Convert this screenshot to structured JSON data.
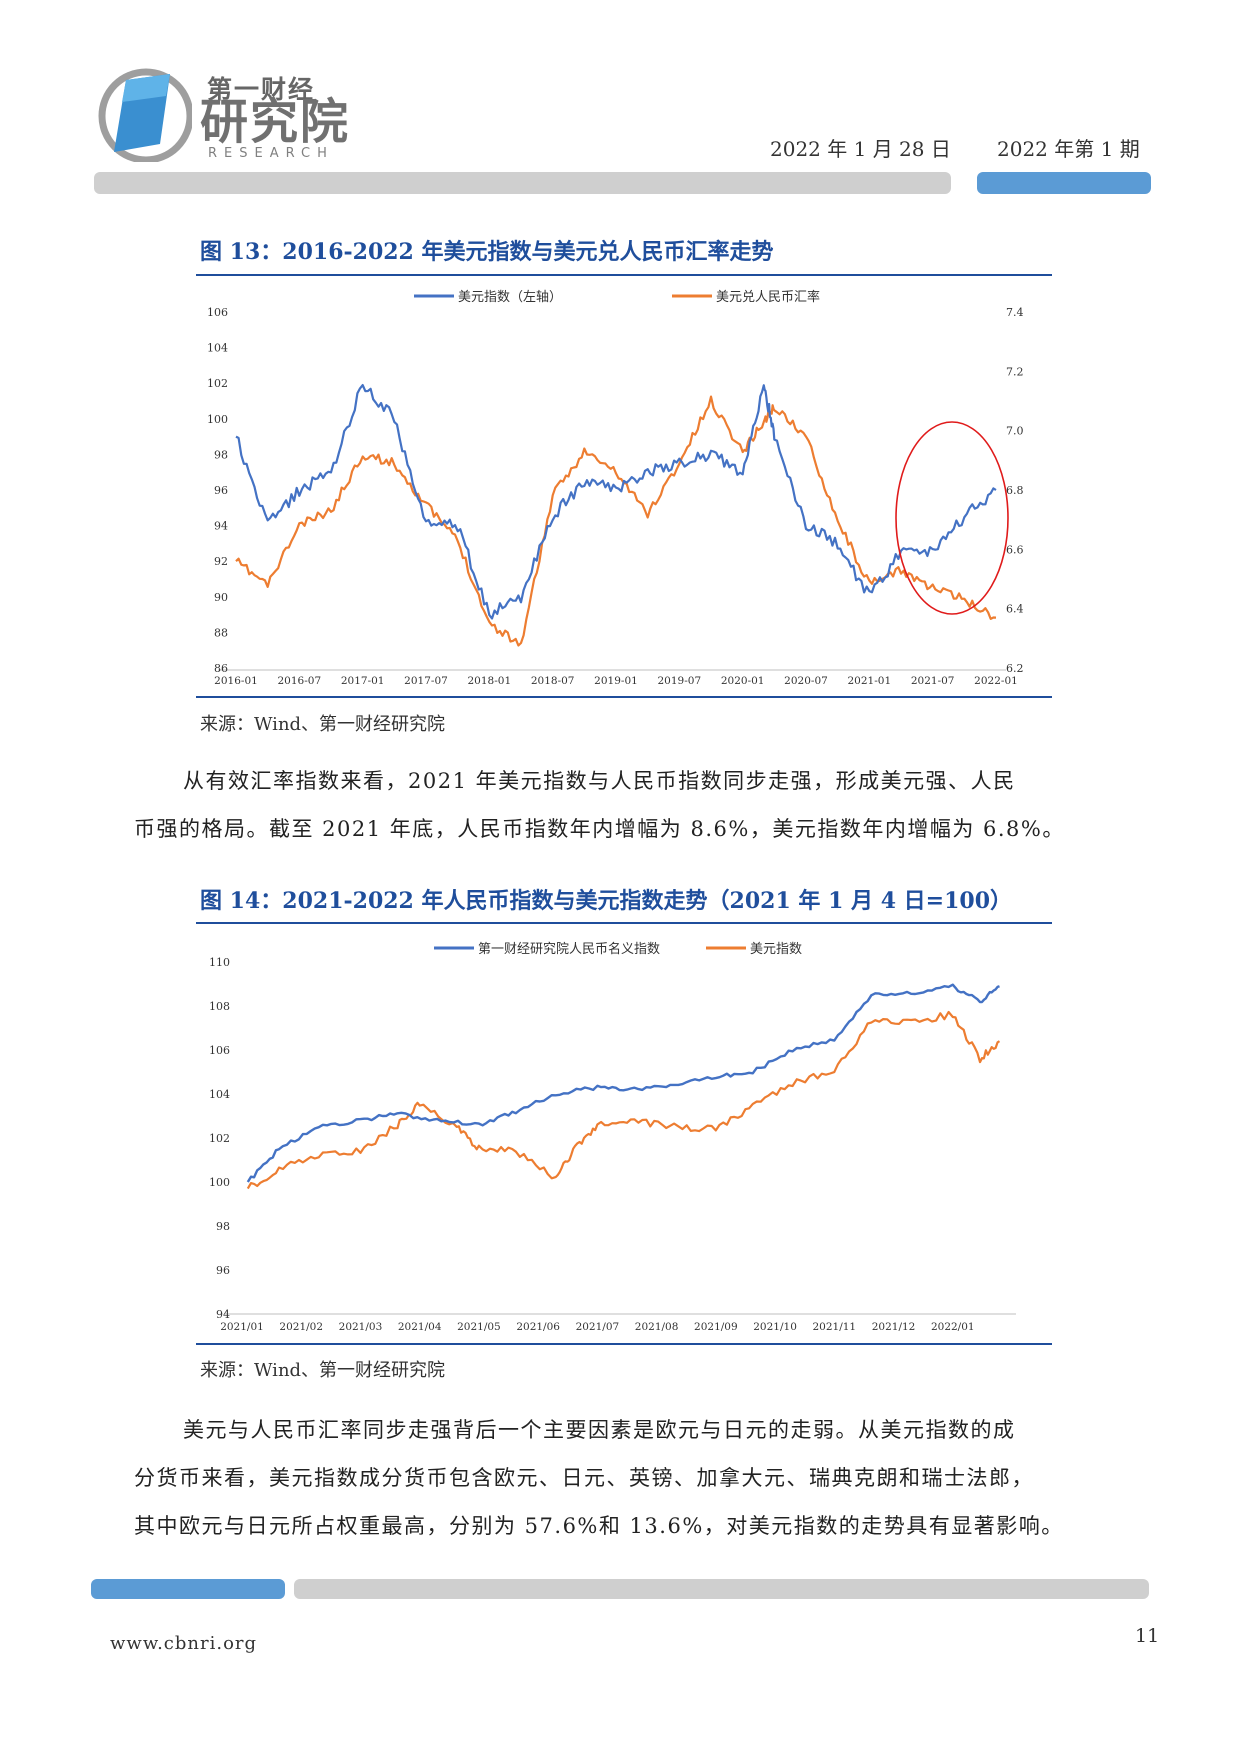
{
  "header": {
    "logo_small": "第一财经",
    "logo_big": "研究院",
    "logo_en": "RESEARCH",
    "date": "2022 年 1 月 28 日",
    "issue": "2022 年第 1 期",
    "colors": {
      "accent_blue": "#5b9bd5",
      "title_blue": "#1f4e9c",
      "bar_gray": "#cfcfcf"
    }
  },
  "figure13": {
    "title": "图 13：2016-2022 年美元指数与美元兑人民币汇率走势",
    "source": "来源：Wind、第一财经研究院"
  },
  "figure14": {
    "title": "图 14：2021-2022 年人民币指数与美元指数走势（2021 年 1 月 4 日=100）",
    "source": "来源：Wind、第一财经研究院"
  },
  "body": {
    "para1_line1": "从有效汇率指数来看，2021 年美元指数与人民币指数同步走强，形成美元强、人民",
    "para1_line2": "币强的格局。截至 2021 年底，人民币指数年内增幅为 8.6%，美元指数年内增幅为 6.8%。",
    "para2_line1": "美元与人民币汇率同步走强背后一个主要因素是欧元与日元的走弱。从美元指数的成",
    "para2_line2": "分货币来看，美元指数成分货币包含欧元、日元、英镑、加拿大元、瑞典克朗和瑞士法郎，",
    "para2_line3": "其中欧元与日元所占权重最高，分别为 57.6%和 13.6%，对美元指数的走势具有显著影响。"
  },
  "footer": {
    "url": "www.cbnri.org",
    "page": "11"
  },
  "chart_data": [
    {
      "type": "line",
      "title": "",
      "series": [
        {
          "name": "美元指数（左轴）",
          "axis": "left",
          "color": "#4472c4",
          "x": [
            "2016-01",
            "2016-04",
            "2016-07",
            "2016-10",
            "2017-01",
            "2017-04",
            "2017-07",
            "2017-10",
            "2018-01",
            "2018-04",
            "2018-07",
            "2018-10",
            "2019-01",
            "2019-04",
            "2019-07",
            "2019-10",
            "2020-01",
            "2020-03",
            "2020-04",
            "2020-07",
            "2020-10",
            "2021-01",
            "2021-04",
            "2021-07",
            "2021-10",
            "2022-01"
          ],
          "values": [
            99,
            94,
            96,
            97,
            102,
            100,
            94,
            94,
            89,
            90,
            94.5,
            96.5,
            96,
            97,
            97.5,
            98,
            97,
            102,
            99,
            94,
            93,
            90,
            92.5,
            92.5,
            94.5,
            96
          ]
        },
        {
          "name": "美元兑人民币汇率",
          "axis": "right",
          "color": "#ed7d31",
          "x": [
            "2016-01",
            "2016-04",
            "2016-07",
            "2016-10",
            "2017-01",
            "2017-04",
            "2017-07",
            "2017-10",
            "2018-01",
            "2018-04",
            "2018-07",
            "2018-10",
            "2019-01",
            "2019-04",
            "2019-07",
            "2019-10",
            "2020-01",
            "2020-03",
            "2020-04",
            "2020-07",
            "2020-10",
            "2021-01",
            "2021-04",
            "2021-07",
            "2021-10",
            "2022-01"
          ],
          "values": [
            6.56,
            6.48,
            6.68,
            6.73,
            6.92,
            6.89,
            6.75,
            6.63,
            6.35,
            6.28,
            6.78,
            6.93,
            6.86,
            6.72,
            6.89,
            7.1,
            6.93,
            7.03,
            7.08,
            6.98,
            6.7,
            6.48,
            6.53,
            6.47,
            6.43,
            6.37
          ]
        }
      ],
      "x_tick_labels": [
        "2016-01",
        "2016-07",
        "2017-01",
        "2017-07",
        "2018-01",
        "2018-07",
        "2019-01",
        "2019-07",
        "2020-01",
        "2020-07",
        "2021-01",
        "2021-07",
        "2022-01"
      ],
      "ylim_left": [
        86,
        106
      ],
      "yticks_left": [
        "106",
        "104",
        "102",
        "100",
        "98",
        "96",
        "94",
        "92",
        "90",
        "88",
        "86"
      ],
      "ylim_right": [
        6.2,
        7.4
      ],
      "yticks_right": [
        "7.4",
        "7.2",
        "7.0",
        "6.8",
        "6.6",
        "6.4",
        "6.2"
      ],
      "legend_position": "top-center",
      "annotation": "red ellipse highlighting 2021-07 to 2022-01",
      "grid": false
    },
    {
      "type": "line",
      "title": "",
      "series": [
        {
          "name": "第一财经研究院人民币名义指数",
          "color": "#4472c4",
          "x": [
            "2021-01-04",
            "2021-01-20",
            "2021-02-10",
            "2021-03-01",
            "2021-03-20",
            "2021-04-10",
            "2021-05-01",
            "2021-05-20",
            "2021-06-10",
            "2021-07-01",
            "2021-07-20",
            "2021-08-10",
            "2021-09-01",
            "2021-09-20",
            "2021-10-10",
            "2021-11-01",
            "2021-11-20",
            "2021-12-10",
            "2022-01-01",
            "2022-01-15",
            "2022-01-25"
          ],
          "values": [
            100,
            101.5,
            102.5,
            102.8,
            103.1,
            102.8,
            102.6,
            103.2,
            104,
            104.3,
            104.2,
            104.4,
            104.8,
            105,
            106,
            106.5,
            108.5,
            108.6,
            108.9,
            108.2,
            108.9
          ]
        },
        {
          "name": "美元指数",
          "color": "#ed7d31",
          "x": [
            "2021-01-04",
            "2021-01-20",
            "2021-02-10",
            "2021-03-01",
            "2021-03-20",
            "2021-04-01",
            "2021-04-20",
            "2021-05-01",
            "2021-05-20",
            "2021-06-10",
            "2021-06-20",
            "2021-07-01",
            "2021-07-20",
            "2021-08-10",
            "2021-09-01",
            "2021-09-20",
            "2021-10-10",
            "2021-11-01",
            "2021-11-20",
            "2021-12-10",
            "2022-01-01",
            "2022-01-15",
            "2022-01-25"
          ],
          "values": [
            99.7,
            100.6,
            101.2,
            101.4,
            102.6,
            103.6,
            102.5,
            101.5,
            101.4,
            100.2,
            101.5,
            102.6,
            102.8,
            102.5,
            102.4,
            103.4,
            104.5,
            105.1,
            107.3,
            107.3,
            107.6,
            105.6,
            106.4
          ]
        }
      ],
      "x_tick_labels": [
        "2021/01",
        "2021/02",
        "2021/03",
        "2021/04",
        "2021/05",
        "2021/06",
        "2021/07",
        "2021/08",
        "2021/09",
        "2021/10",
        "2021/11",
        "2021/12",
        "2022/01"
      ],
      "ylim": [
        94,
        110
      ],
      "yticks": [
        "110",
        "108",
        "106",
        "104",
        "102",
        "100",
        "98",
        "96",
        "94"
      ],
      "legend_position": "top-center",
      "grid": false
    }
  ]
}
